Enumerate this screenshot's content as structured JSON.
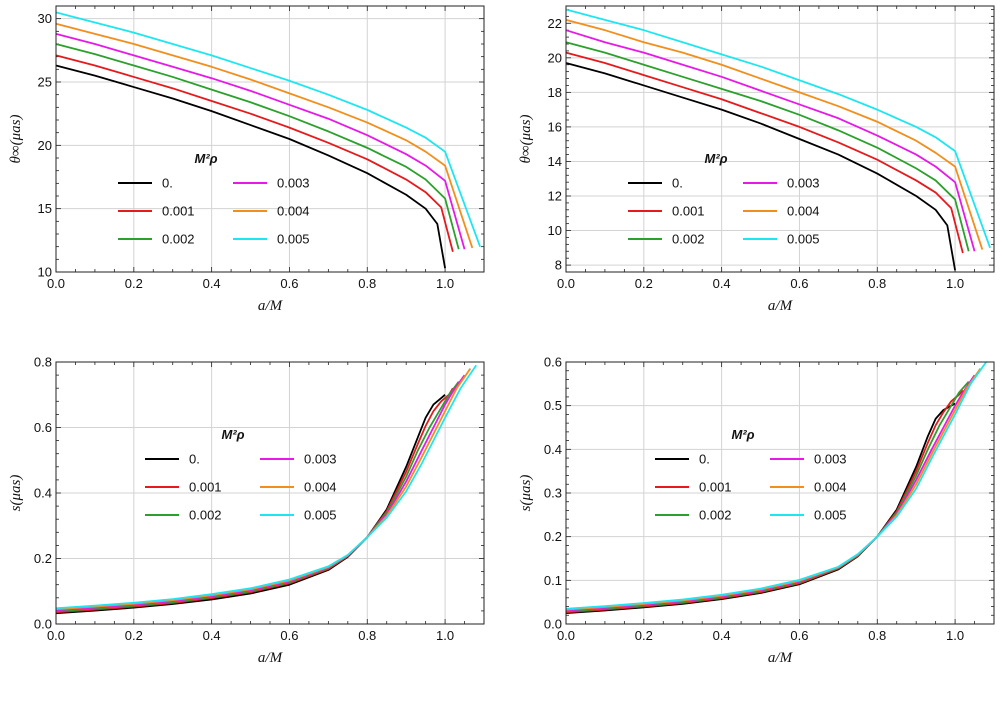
{
  "chart_data": [
    {
      "id": "top-left",
      "type": "line",
      "xlabel": "a/M",
      "ylabel": "θ∞(μas)",
      "xlim": [
        0,
        1.1
      ],
      "ylim": [
        10,
        31
      ],
      "xticks": [
        "0.0",
        "0.2",
        "0.4",
        "0.6",
        "0.8",
        "1.0"
      ],
      "yticks": [
        "10",
        "15",
        "20",
        "25",
        "30"
      ],
      "grid": true,
      "legend_title": "M²ρ",
      "legend_position": "center-left",
      "series": [
        {
          "name": "0.",
          "color": "#000000",
          "x": [
            0,
            0.1,
            0.2,
            0.3,
            0.4,
            0.5,
            0.6,
            0.7,
            0.8,
            0.9,
            0.95,
            0.98,
            1.0
          ],
          "y": [
            26.3,
            25.5,
            24.6,
            23.7,
            22.7,
            21.6,
            20.5,
            19.2,
            17.8,
            16.1,
            15.0,
            13.8,
            10.3
          ]
        },
        {
          "name": "0.001",
          "color": "#e41a1c",
          "x": [
            0,
            0.1,
            0.2,
            0.3,
            0.4,
            0.5,
            0.6,
            0.7,
            0.8,
            0.9,
            0.95,
            0.99,
            1.02
          ],
          "y": [
            27.1,
            26.3,
            25.4,
            24.5,
            23.5,
            22.5,
            21.4,
            20.2,
            18.9,
            17.3,
            16.3,
            15.1,
            11.6
          ]
        },
        {
          "name": "0.002",
          "color": "#2ca02c",
          "x": [
            0,
            0.1,
            0.2,
            0.3,
            0.4,
            0.5,
            0.6,
            0.7,
            0.8,
            0.9,
            0.95,
            1.0,
            1.035
          ],
          "y": [
            28.0,
            27.2,
            26.3,
            25.4,
            24.4,
            23.4,
            22.3,
            21.1,
            19.8,
            18.3,
            17.3,
            15.8,
            11.8
          ]
        },
        {
          "name": "0.003",
          "color": "#e619e6",
          "x": [
            0,
            0.1,
            0.2,
            0.3,
            0.4,
            0.5,
            0.6,
            0.7,
            0.8,
            0.9,
            0.95,
            1.0,
            1.05
          ],
          "y": [
            28.8,
            28.0,
            27.1,
            26.2,
            25.3,
            24.3,
            23.2,
            22.1,
            20.8,
            19.3,
            18.4,
            17.2,
            11.8
          ]
        },
        {
          "name": "0.004",
          "color": "#f28e1c",
          "x": [
            0,
            0.1,
            0.2,
            0.3,
            0.4,
            0.5,
            0.6,
            0.7,
            0.8,
            0.9,
            0.95,
            1.0,
            1.07
          ],
          "y": [
            29.6,
            28.8,
            28.0,
            27.1,
            26.2,
            25.2,
            24.1,
            23.0,
            21.8,
            20.4,
            19.5,
            18.4,
            11.9
          ]
        },
        {
          "name": "0.005",
          "color": "#1ee6f0",
          "x": [
            0,
            0.1,
            0.2,
            0.3,
            0.4,
            0.5,
            0.6,
            0.7,
            0.8,
            0.9,
            0.95,
            1.0,
            1.09
          ],
          "y": [
            30.5,
            29.7,
            28.9,
            28.0,
            27.1,
            26.1,
            25.1,
            24.0,
            22.8,
            21.4,
            20.6,
            19.5,
            12.0
          ]
        }
      ]
    },
    {
      "id": "top-right",
      "type": "line",
      "xlabel": "a/M",
      "ylabel": "θ∞(μas)",
      "xlim": [
        0,
        1.1
      ],
      "ylim": [
        7.6,
        23
      ],
      "xticks": [
        "0.0",
        "0.2",
        "0.4",
        "0.6",
        "0.8",
        "1.0"
      ],
      "yticks": [
        "8",
        "10",
        "12",
        "14",
        "16",
        "18",
        "20",
        "22"
      ],
      "grid": true,
      "legend_title": "M²ρ",
      "legend_position": "center-left",
      "series": [
        {
          "name": "0.",
          "color": "#000000",
          "x": [
            0,
            0.1,
            0.2,
            0.3,
            0.4,
            0.5,
            0.6,
            0.7,
            0.8,
            0.9,
            0.95,
            0.98,
            1.0
          ],
          "y": [
            19.7,
            19.1,
            18.4,
            17.7,
            17.0,
            16.2,
            15.3,
            14.4,
            13.3,
            12.0,
            11.2,
            10.3,
            7.7
          ]
        },
        {
          "name": "0.001",
          "color": "#e41a1c",
          "x": [
            0,
            0.1,
            0.2,
            0.3,
            0.4,
            0.5,
            0.6,
            0.7,
            0.8,
            0.9,
            0.95,
            0.99,
            1.02
          ],
          "y": [
            20.3,
            19.7,
            19.0,
            18.3,
            17.6,
            16.8,
            16.0,
            15.1,
            14.1,
            12.9,
            12.2,
            11.3,
            8.7
          ]
        },
        {
          "name": "0.002",
          "color": "#2ca02c",
          "x": [
            0,
            0.1,
            0.2,
            0.3,
            0.4,
            0.5,
            0.6,
            0.7,
            0.8,
            0.9,
            0.95,
            1.0,
            1.035
          ],
          "y": [
            20.9,
            20.3,
            19.6,
            18.9,
            18.2,
            17.5,
            16.7,
            15.8,
            14.8,
            13.6,
            12.9,
            11.8,
            8.8
          ]
        },
        {
          "name": "0.003",
          "color": "#e619e6",
          "x": [
            0,
            0.1,
            0.2,
            0.3,
            0.4,
            0.5,
            0.6,
            0.7,
            0.8,
            0.9,
            0.95,
            1.0,
            1.05
          ],
          "y": [
            21.6,
            20.9,
            20.3,
            19.6,
            18.9,
            18.1,
            17.3,
            16.5,
            15.5,
            14.4,
            13.7,
            12.8,
            8.8
          ]
        },
        {
          "name": "0.004",
          "color": "#f28e1c",
          "x": [
            0,
            0.1,
            0.2,
            0.3,
            0.4,
            0.5,
            0.6,
            0.7,
            0.8,
            0.9,
            0.95,
            1.0,
            1.07
          ],
          "y": [
            22.2,
            21.6,
            20.9,
            20.3,
            19.6,
            18.8,
            18.0,
            17.2,
            16.3,
            15.2,
            14.5,
            13.7,
            8.9
          ]
        },
        {
          "name": "0.005",
          "color": "#1ee6f0",
          "x": [
            0,
            0.1,
            0.2,
            0.3,
            0.4,
            0.5,
            0.6,
            0.7,
            0.8,
            0.9,
            0.95,
            1.0,
            1.09
          ],
          "y": [
            22.8,
            22.2,
            21.6,
            20.9,
            20.2,
            19.5,
            18.7,
            17.9,
            17.0,
            16.0,
            15.4,
            14.6,
            9.0
          ]
        }
      ]
    },
    {
      "id": "bottom-left",
      "type": "line",
      "xlabel": "a/M",
      "ylabel": "s(μas)",
      "xlim": [
        0,
        1.1
      ],
      "ylim": [
        0,
        0.8
      ],
      "xticks": [
        "0.0",
        "0.2",
        "0.4",
        "0.6",
        "0.8",
        "1.0"
      ],
      "yticks": [
        "0.0",
        "0.2",
        "0.4",
        "0.6",
        "0.8"
      ],
      "grid": true,
      "legend_title": "M²ρ",
      "legend_position": "center",
      "series": [
        {
          "name": "0.",
          "color": "#000000",
          "x": [
            0,
            0.1,
            0.2,
            0.3,
            0.4,
            0.5,
            0.6,
            0.7,
            0.75,
            0.8,
            0.85,
            0.9,
            0.93,
            0.95,
            0.97,
            0.98,
            0.99,
            1.0
          ],
          "y": [
            0.033,
            0.041,
            0.05,
            0.061,
            0.075,
            0.093,
            0.12,
            0.165,
            0.205,
            0.265,
            0.35,
            0.48,
            0.57,
            0.63,
            0.67,
            0.68,
            0.69,
            0.7
          ]
        },
        {
          "name": "0.001",
          "color": "#e41a1c",
          "x": [
            0,
            0.1,
            0.2,
            0.3,
            0.4,
            0.5,
            0.6,
            0.7,
            0.75,
            0.8,
            0.85,
            0.9,
            0.93,
            0.95,
            0.97,
            0.99,
            1.01,
            1.02
          ],
          "y": [
            0.036,
            0.044,
            0.053,
            0.064,
            0.079,
            0.097,
            0.124,
            0.168,
            0.207,
            0.265,
            0.345,
            0.465,
            0.55,
            0.605,
            0.65,
            0.68,
            0.7,
            0.72
          ]
        },
        {
          "name": "0.002",
          "color": "#2ca02c",
          "x": [
            0,
            0.1,
            0.2,
            0.3,
            0.4,
            0.5,
            0.6,
            0.7,
            0.75,
            0.8,
            0.85,
            0.9,
            0.93,
            0.96,
            0.99,
            1.01,
            1.035
          ],
          "y": [
            0.039,
            0.047,
            0.056,
            0.067,
            0.082,
            0.1,
            0.127,
            0.17,
            0.208,
            0.265,
            0.34,
            0.45,
            0.53,
            0.6,
            0.66,
            0.7,
            0.74
          ]
        },
        {
          "name": "0.003",
          "color": "#e619e6",
          "x": [
            0,
            0.1,
            0.2,
            0.3,
            0.4,
            0.5,
            0.6,
            0.7,
            0.75,
            0.8,
            0.85,
            0.9,
            0.94,
            0.97,
            1.0,
            1.02,
            1.05
          ],
          "y": [
            0.042,
            0.05,
            0.059,
            0.07,
            0.085,
            0.103,
            0.13,
            0.172,
            0.209,
            0.265,
            0.335,
            0.435,
            0.53,
            0.6,
            0.67,
            0.71,
            0.76
          ]
        },
        {
          "name": "0.004",
          "color": "#f28e1c",
          "x": [
            0,
            0.1,
            0.2,
            0.3,
            0.4,
            0.5,
            0.6,
            0.7,
            0.75,
            0.8,
            0.85,
            0.9,
            0.94,
            0.97,
            1.0,
            1.03,
            1.065
          ],
          "y": [
            0.045,
            0.053,
            0.062,
            0.073,
            0.088,
            0.106,
            0.133,
            0.174,
            0.21,
            0.265,
            0.33,
            0.42,
            0.51,
            0.58,
            0.65,
            0.72,
            0.78
          ]
        },
        {
          "name": "0.005",
          "color": "#1ee6f0",
          "x": [
            0,
            0.1,
            0.2,
            0.3,
            0.4,
            0.5,
            0.6,
            0.7,
            0.75,
            0.8,
            0.85,
            0.9,
            0.94,
            0.97,
            1.0,
            1.04,
            1.08
          ],
          "y": [
            0.048,
            0.056,
            0.065,
            0.076,
            0.091,
            0.109,
            0.136,
            0.176,
            0.211,
            0.265,
            0.325,
            0.405,
            0.49,
            0.56,
            0.63,
            0.72,
            0.79
          ]
        }
      ]
    },
    {
      "id": "bottom-right",
      "type": "line",
      "xlabel": "a/M",
      "ylabel": "s(μas)",
      "xlim": [
        0,
        1.1
      ],
      "ylim": [
        0,
        0.6
      ],
      "xticks": [
        "0.0",
        "0.2",
        "0.4",
        "0.6",
        "0.8",
        "1.0"
      ],
      "yticks": [
        "0.0",
        "0.1",
        "0.2",
        "0.3",
        "0.4",
        "0.5",
        "0.6"
      ],
      "grid": true,
      "legend_title": "M²ρ",
      "legend_position": "center-right",
      "series": [
        {
          "name": "0.",
          "color": "#000000",
          "x": [
            0,
            0.1,
            0.2,
            0.3,
            0.4,
            0.5,
            0.6,
            0.7,
            0.75,
            0.8,
            0.85,
            0.9,
            0.93,
            0.95,
            0.97,
            0.98,
            0.99,
            1.0
          ],
          "y": [
            0.025,
            0.031,
            0.038,
            0.046,
            0.057,
            0.071,
            0.091,
            0.125,
            0.155,
            0.2,
            0.262,
            0.36,
            0.43,
            0.47,
            0.49,
            0.495,
            0.5,
            0.505
          ]
        },
        {
          "name": "0.001",
          "color": "#e41a1c",
          "x": [
            0,
            0.1,
            0.2,
            0.3,
            0.4,
            0.5,
            0.6,
            0.7,
            0.75,
            0.8,
            0.85,
            0.9,
            0.93,
            0.95,
            0.97,
            0.99,
            1.01,
            1.02
          ],
          "y": [
            0.027,
            0.033,
            0.04,
            0.048,
            0.059,
            0.073,
            0.093,
            0.127,
            0.156,
            0.2,
            0.258,
            0.35,
            0.415,
            0.455,
            0.485,
            0.51,
            0.525,
            0.535
          ]
        },
        {
          "name": "0.002",
          "color": "#2ca02c",
          "x": [
            0,
            0.1,
            0.2,
            0.3,
            0.4,
            0.5,
            0.6,
            0.7,
            0.75,
            0.8,
            0.85,
            0.9,
            0.93,
            0.96,
            0.99,
            1.01,
            1.035
          ],
          "y": [
            0.029,
            0.035,
            0.042,
            0.05,
            0.061,
            0.075,
            0.095,
            0.128,
            0.157,
            0.2,
            0.255,
            0.34,
            0.4,
            0.455,
            0.5,
            0.53,
            0.555
          ]
        },
        {
          "name": "0.003",
          "color": "#e619e6",
          "x": [
            0,
            0.1,
            0.2,
            0.3,
            0.4,
            0.5,
            0.6,
            0.7,
            0.75,
            0.8,
            0.85,
            0.9,
            0.94,
            0.97,
            1.0,
            1.02,
            1.05
          ],
          "y": [
            0.031,
            0.037,
            0.044,
            0.052,
            0.063,
            0.077,
            0.097,
            0.129,
            0.158,
            0.2,
            0.252,
            0.33,
            0.4,
            0.45,
            0.5,
            0.53,
            0.57
          ]
        },
        {
          "name": "0.004",
          "color": "#f28e1c",
          "x": [
            0,
            0.1,
            0.2,
            0.3,
            0.4,
            0.5,
            0.6,
            0.7,
            0.75,
            0.8,
            0.85,
            0.9,
            0.94,
            0.97,
            1.0,
            1.03,
            1.065
          ],
          "y": [
            0.033,
            0.039,
            0.046,
            0.054,
            0.065,
            0.079,
            0.099,
            0.13,
            0.159,
            0.2,
            0.249,
            0.32,
            0.39,
            0.44,
            0.49,
            0.54,
            0.585
          ]
        },
        {
          "name": "0.005",
          "color": "#1ee6f0",
          "x": [
            0,
            0.1,
            0.2,
            0.3,
            0.4,
            0.5,
            0.6,
            0.7,
            0.75,
            0.8,
            0.85,
            0.9,
            0.94,
            0.97,
            1.0,
            1.04,
            1.08
          ],
          "y": [
            0.035,
            0.041,
            0.048,
            0.056,
            0.067,
            0.081,
            0.101,
            0.131,
            0.16,
            0.2,
            0.246,
            0.31,
            0.38,
            0.43,
            0.48,
            0.55,
            0.6
          ]
        }
      ]
    }
  ]
}
